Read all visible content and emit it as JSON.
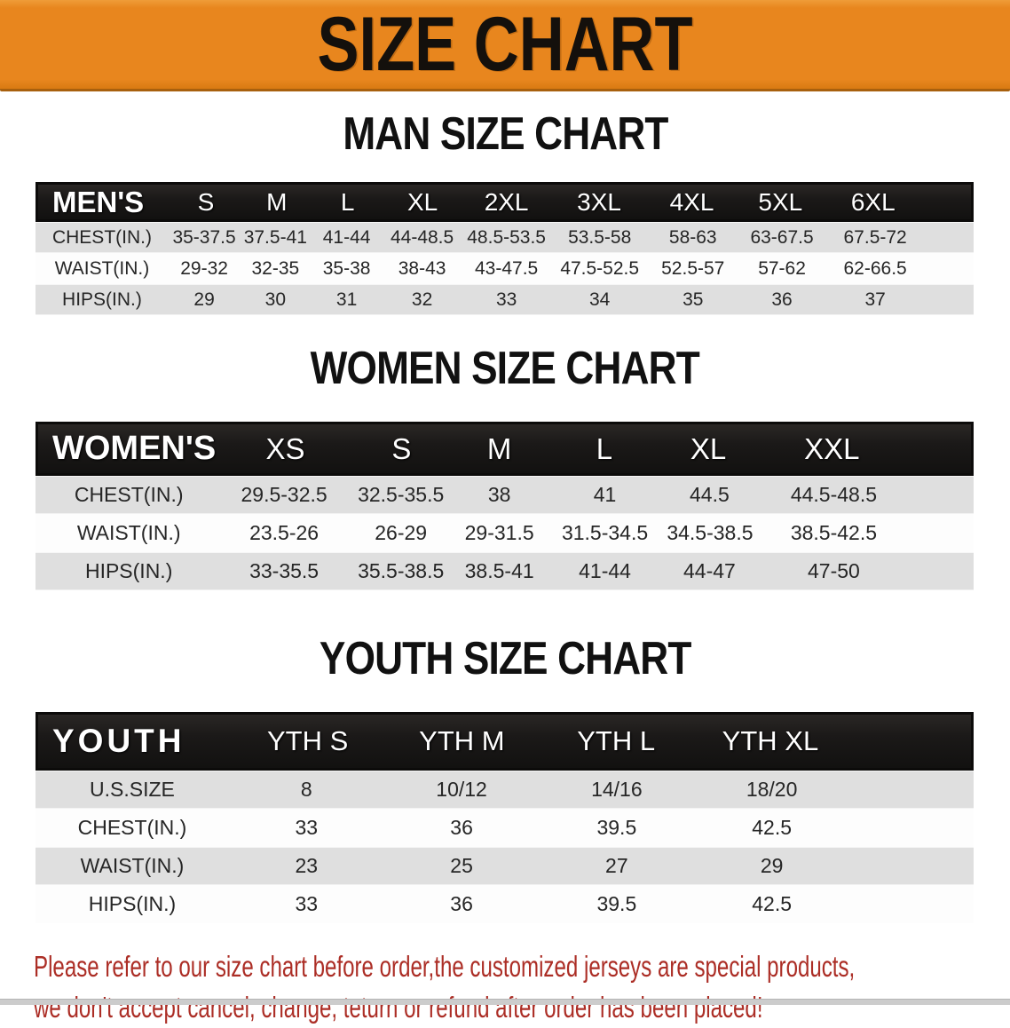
{
  "banner": {
    "title": "SIZE CHART"
  },
  "sections": [
    {
      "title": "MAN SIZE CHART",
      "header_label": "MEN'S",
      "columns": [
        "S",
        "M",
        "L",
        "XL",
        "2XL",
        "3XL",
        "4XL",
        "5XL",
        "6XL"
      ],
      "rows": [
        {
          "label": "CHEST(IN.)",
          "values": [
            "35-37.5",
            "37.5-41",
            "41-44",
            "44-48.5",
            "48.5-53.5",
            "53.5-58",
            "58-63",
            "63-67.5",
            "67.5-72"
          ]
        },
        {
          "label": "WAIST(IN.)",
          "values": [
            "29-32",
            "32-35",
            "35-38",
            "38-43",
            "43-47.5",
            "47.5-52.5",
            "52.5-57",
            "57-62",
            "62-66.5"
          ]
        },
        {
          "label": "HIPS(IN.)",
          "values": [
            "29",
            "30",
            "31",
            "32",
            "33",
            "34",
            "35",
            "36",
            "37"
          ]
        }
      ]
    },
    {
      "title": "WOMEN SIZE CHART",
      "header_label": "WOMEN'S",
      "columns": [
        "XS",
        "S",
        "M",
        "L",
        "XL",
        "XXL"
      ],
      "rows": [
        {
          "label": "CHEST(IN.)",
          "values": [
            "29.5-32.5",
            "32.5-35.5",
            "38",
            "41",
            "44.5",
            "44.5-48.5"
          ]
        },
        {
          "label": "WAIST(IN.)",
          "values": [
            "23.5-26",
            "26-29",
            "29-31.5",
            "31.5-34.5",
            "34.5-38.5",
            "38.5-42.5"
          ]
        },
        {
          "label": "HIPS(IN.)",
          "values": [
            "33-35.5",
            "35.5-38.5",
            "38.5-41",
            "41-44",
            "44-47",
            "47-50"
          ]
        }
      ]
    },
    {
      "title": "YOUTH SIZE CHART",
      "header_label": "YOUTH",
      "columns": [
        "YTH S",
        "YTH M",
        "YTH L",
        "YTH XL"
      ],
      "rows": [
        {
          "label": "U.S.SIZE",
          "values": [
            "8",
            "10/12",
            "14/16",
            "18/20"
          ]
        },
        {
          "label": "CHEST(IN.)",
          "values": [
            "33",
            "36",
            "39.5",
            "42.5"
          ]
        },
        {
          "label": "WAIST(IN.)",
          "values": [
            "23",
            "25",
            "27",
            "29"
          ]
        },
        {
          "label": "HIPS(IN.)",
          "values": [
            "33",
            "36",
            "39.5",
            "42.5"
          ]
        }
      ]
    }
  ],
  "footer": {
    "line1": "Please refer to our size chart before order,the customized jerseys are special products,",
    "line2": "we don't accept cancel, change, teturn or refund after order has been placed!"
  },
  "colors": {
    "banner_bg": "#E8861E",
    "banner_border": "#A8600E",
    "table_header_bg": "#1B1918",
    "row_gray": "#DFDFDF",
    "row_white": "#FDFDFD",
    "footer_text": "#AC2E26",
    "title_text": "#111111"
  }
}
